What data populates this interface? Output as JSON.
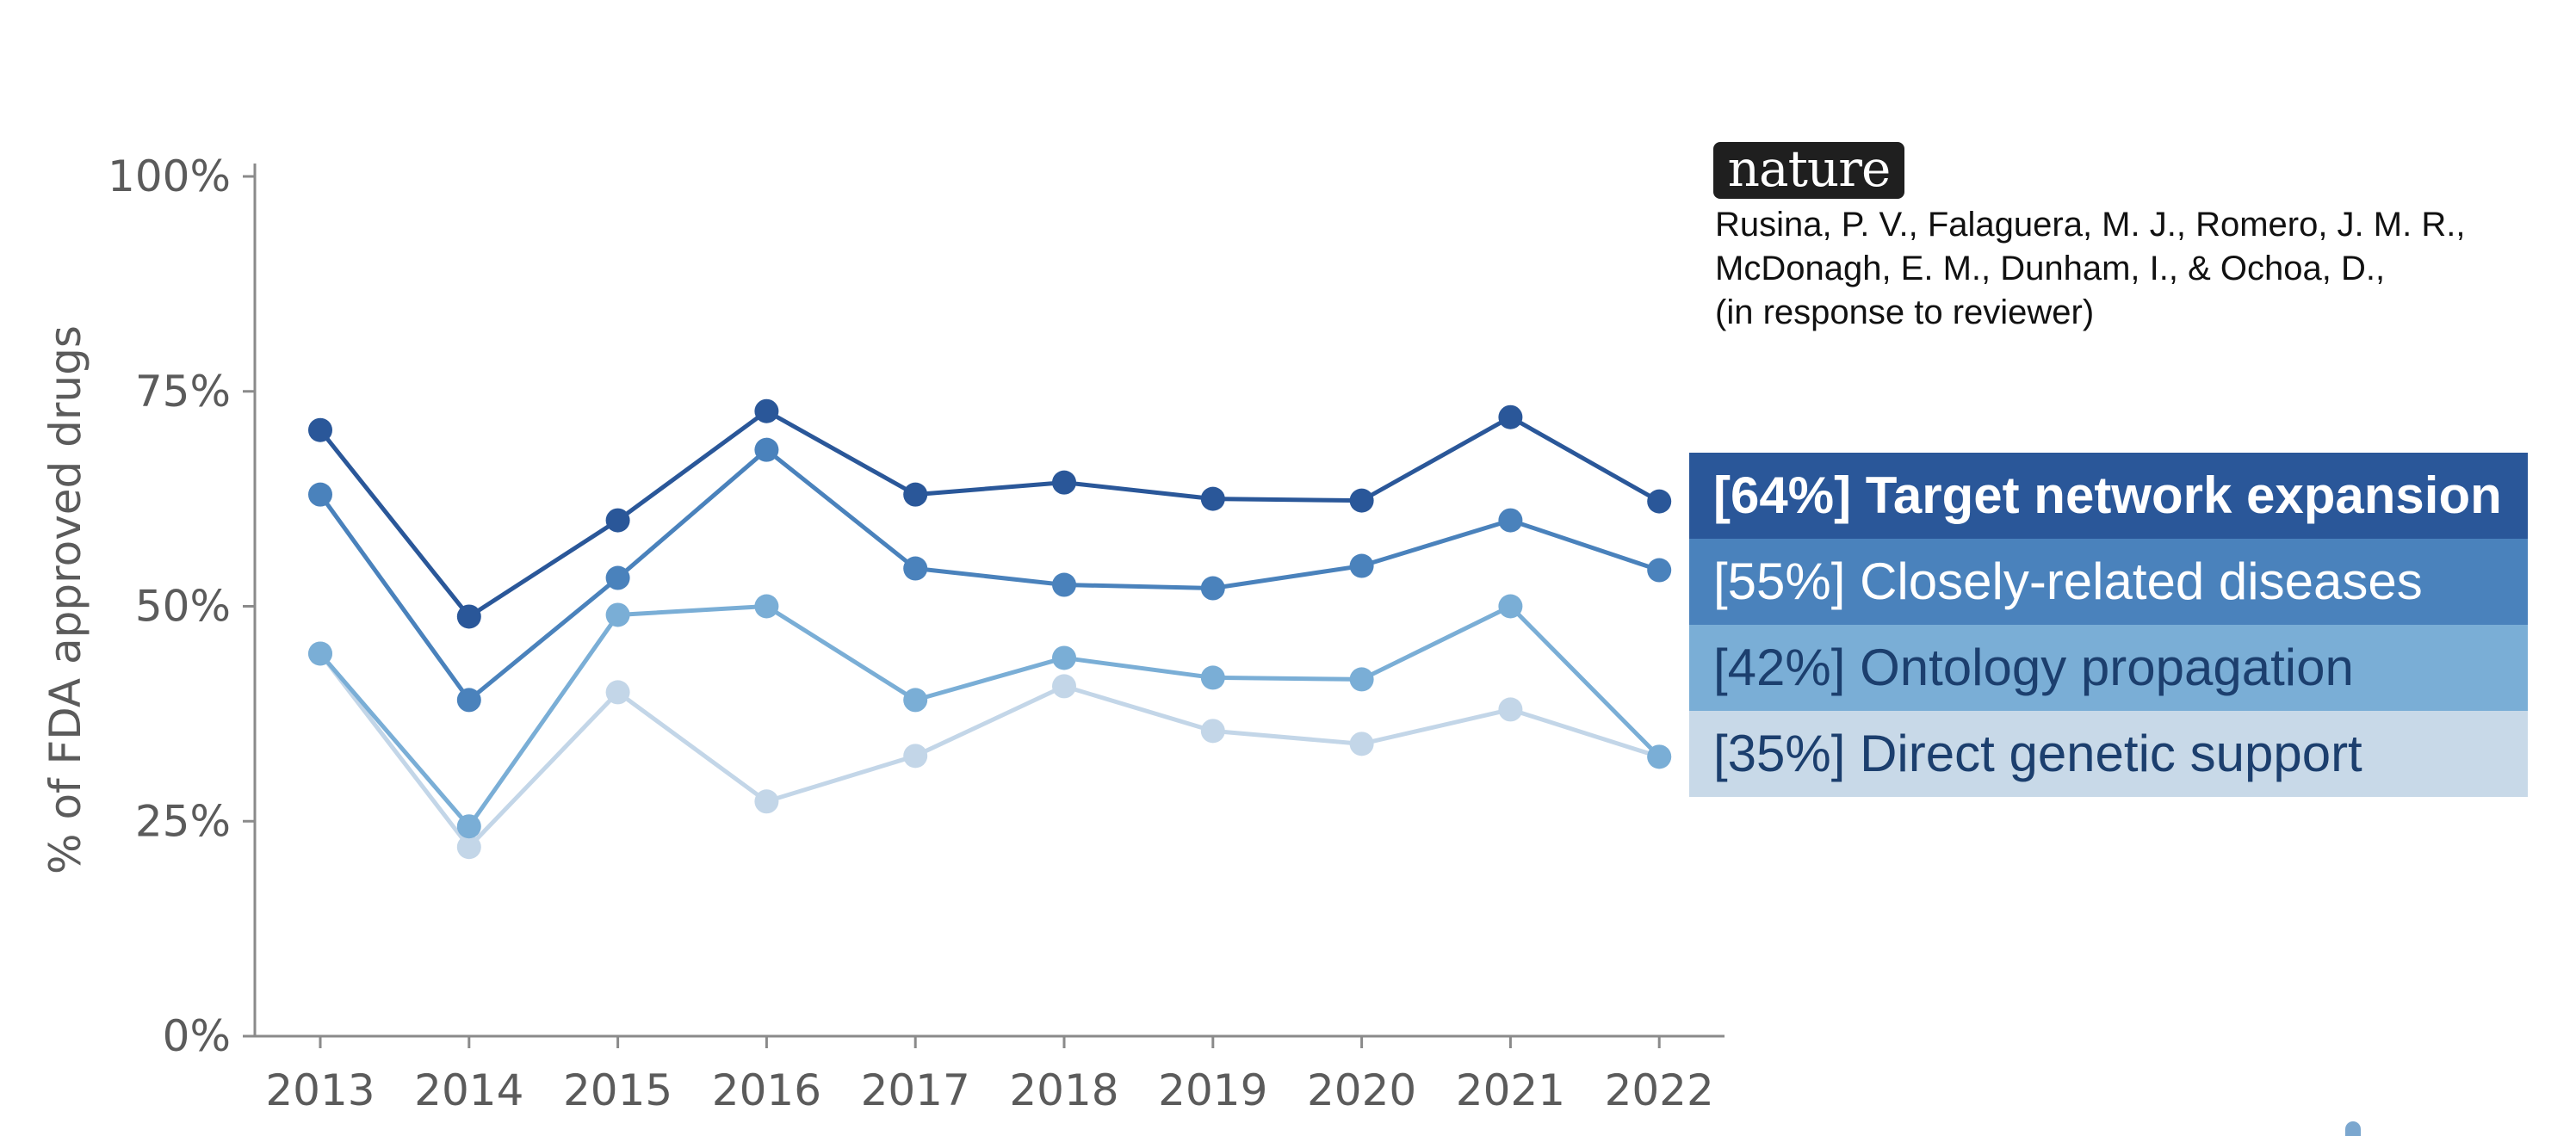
{
  "brand": {
    "logo_text": "nature"
  },
  "citation": {
    "lines": [
      "Rusina, P. V., Falaguera, M. J., Romero, J. M. R.,",
      "McDonagh, E. M., Dunham, I., & Ochoa, D.,",
      "(in response to reviewer)"
    ]
  },
  "legend": {
    "items": [
      {
        "label": "[64%] Target network expansion",
        "bg": "#2a5799",
        "color": "#ffffff",
        "bold": true
      },
      {
        "label": "[55%] Closely-related diseases",
        "bg": "#4a82bc",
        "color": "#ffffff",
        "bold": false
      },
      {
        "label": "[42%] Ontology propagation",
        "bg": "#7aaed6",
        "color": "#1c3f6e",
        "bold": false
      },
      {
        "label": "[35%] Direct genetic support",
        "bg": "#c8d9e8",
        "color": "#1c3f6e",
        "bold": false
      }
    ]
  },
  "chart_data": {
    "type": "line",
    "title": "",
    "xlabel": "",
    "ylabel": "% of FDA approved drugs",
    "x": [
      2013,
      2014,
      2015,
      2016,
      2017,
      2018,
      2019,
      2020,
      2021,
      2022
    ],
    "x_tick_labels": [
      "2013",
      "2014",
      "2015",
      "2016",
      "2017",
      "2018",
      "2019",
      "2020",
      "2021",
      "2022"
    ],
    "ylim": [
      0,
      100
    ],
    "y_ticks": [
      0,
      25,
      50,
      75,
      100
    ],
    "y_tick_labels": [
      "0%",
      "25%",
      "50%",
      "75%",
      "100%"
    ],
    "grid": false,
    "legend_position": "right",
    "series": [
      {
        "name": "[35%] Direct genetic support",
        "color": "#c3d6e8",
        "values": [
          44.5,
          22,
          40,
          27.3,
          32.6,
          40.7,
          35.5,
          34,
          38,
          32.5
        ]
      },
      {
        "name": "[42%] Ontology propagation",
        "color": "#7aaed6",
        "values": [
          44.5,
          24.4,
          49,
          50,
          39.1,
          44,
          41.7,
          41.5,
          50,
          32.5
        ]
      },
      {
        "name": "[55%] Closely-related diseases",
        "color": "#4a82bc",
        "values": [
          63,
          39.1,
          53.3,
          68.2,
          54.4,
          52.5,
          52.1,
          54.7,
          60,
          54.2
        ]
      },
      {
        "name": "[64%] Target network expansion",
        "color": "#2a5799",
        "values": [
          70.5,
          48.8,
          60,
          72.7,
          63,
          64.4,
          62.5,
          62.3,
          72,
          62.2
        ]
      }
    ]
  },
  "decoration": {
    "corner_dot_color": "#7ba7cf"
  }
}
